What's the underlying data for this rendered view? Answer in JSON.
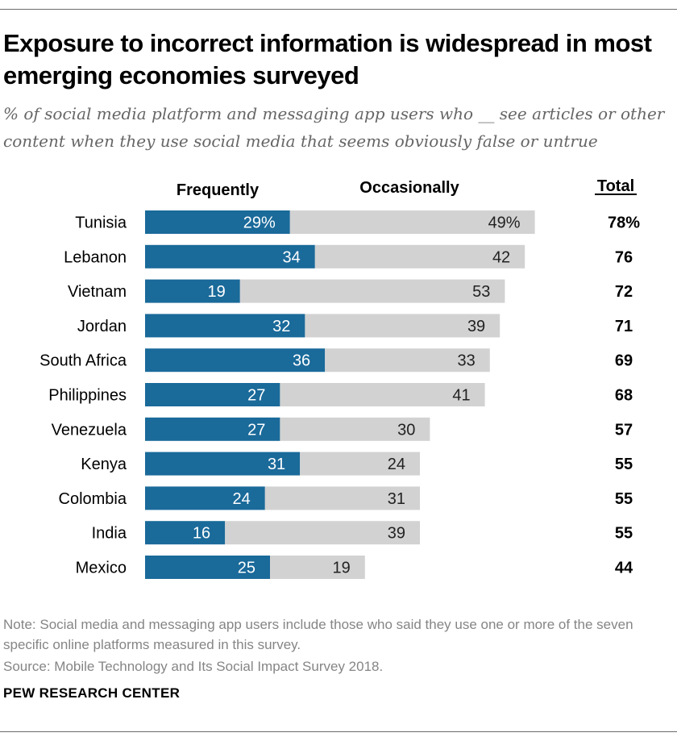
{
  "title": "Exposure to incorrect information is widespread in most emerging economies surveyed",
  "subtitle": "% of social media platform and messaging app users who __ see articles or other content when they use social media that seems obviously false or untrue",
  "note": "Note: Social media and messaging app users include those who said they use one or more of the seven specific online platforms measured in this survey.",
  "source": "Source: Mobile Technology and Its Social Impact Survey 2018.",
  "organization": "PEW RESEARCH CENTER",
  "colors": {
    "frequently": "#1a6a9a",
    "occasionally": "#d2d2d2"
  },
  "chart_data": {
    "type": "bar",
    "orientation": "horizontal",
    "stacked": true,
    "categories": [
      "Tunisia",
      "Lebanon",
      "Vietnam",
      "Jordan",
      "South Africa",
      "Philippines",
      "Venezuela",
      "Kenya",
      "Colombia",
      "India",
      "Mexico"
    ],
    "series": [
      {
        "name": "Frequently",
        "values": [
          29,
          34,
          19,
          32,
          36,
          27,
          27,
          31,
          24,
          16,
          25
        ],
        "labels": [
          "29%",
          "34",
          "19",
          "32",
          "36",
          "27",
          "27",
          "31",
          "24",
          "16",
          "25"
        ]
      },
      {
        "name": "Occasionally",
        "values": [
          49,
          42,
          53,
          39,
          33,
          41,
          30,
          24,
          31,
          39,
          19
        ],
        "labels": [
          "49%",
          "42",
          "53",
          "39",
          "33",
          "41",
          "30",
          "24",
          "31",
          "39",
          "19"
        ]
      }
    ],
    "total_header": "Total",
    "totals": [
      "78%",
      "76",
      "72",
      "71",
      "69",
      "68",
      "57",
      "55",
      "55",
      "55",
      "44"
    ],
    "xlim": [
      0,
      100
    ],
    "grid": false,
    "legend": "top"
  }
}
